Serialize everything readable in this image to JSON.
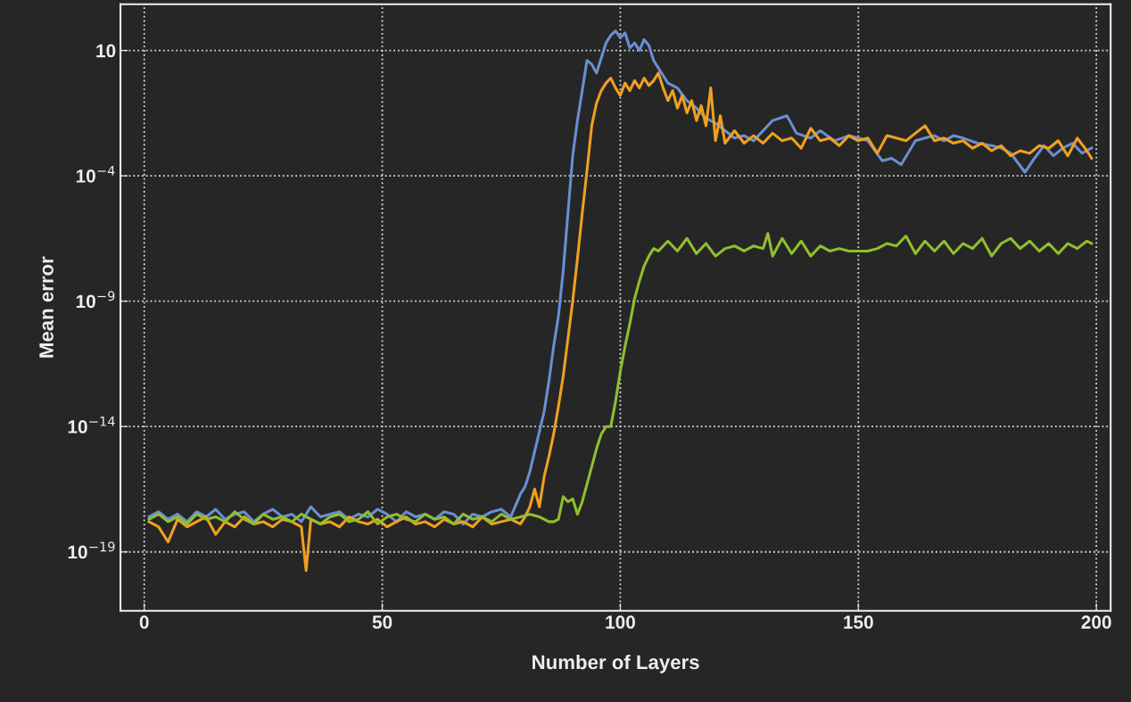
{
  "chart_data": {
    "type": "line",
    "xlabel": "Number of Layers",
    "ylabel": "Mean error",
    "log": "y",
    "grid": true,
    "line_style": "solid",
    "xlim": [
      -5,
      203
    ],
    "xticks": [
      0,
      50,
      100,
      150,
      200
    ],
    "ylim": [
      4.5e-22,
      700
    ],
    "yticks": [
      {
        "value": 1e-19,
        "label": "10$^{−19}$"
      },
      {
        "value": 1e-14,
        "label": "10$^{−14}$"
      },
      {
        "value": 1e-09,
        "label": "10$^{−9}$"
      },
      {
        "value": 0.0001,
        "label": "10$^{−4}$"
      },
      10
    ],
    "series": [
      {
        "color": "#6a8fd0",
        "x": [
          1,
          3,
          5,
          7,
          9,
          11,
          13,
          15,
          17,
          19,
          21,
          23,
          25,
          27,
          29,
          31,
          33,
          35,
          37,
          39,
          41,
          43,
          45,
          47,
          49,
          51,
          53,
          55,
          57,
          59,
          61,
          63,
          65,
          67,
          69,
          71,
          73,
          75,
          77,
          79,
          80,
          81,
          82,
          83,
          84,
          85,
          86,
          87,
          88,
          89,
          90,
          91,
          92,
          93,
          94,
          95,
          96,
          97,
          98,
          99,
          100,
          101,
          102,
          103,
          104,
          105,
          106,
          107,
          108,
          110,
          112,
          114,
          116,
          118,
          120,
          122,
          124,
          126,
          128,
          130,
          132,
          135,
          137,
          140,
          142,
          145,
          148,
          150,
          152,
          155,
          157,
          159,
          162,
          164,
          166,
          168,
          170,
          172,
          175,
          178,
          180,
          182,
          185,
          187,
          189,
          191,
          193,
          195,
          197,
          199
        ],
        "values": [
          2.5e-18,
          4e-18,
          2e-18,
          3.2e-18,
          1.6e-18,
          4e-18,
          2.5e-18,
          5e-18,
          2e-18,
          3.2e-18,
          4e-18,
          1.6e-18,
          3.2e-18,
          5e-18,
          2.5e-18,
          3.2e-18,
          1.6e-18,
          6.3e-18,
          2.5e-18,
          3.2e-18,
          4e-18,
          2e-18,
          3.2e-18,
          2.5e-18,
          5e-18,
          3.2e-18,
          1.6e-18,
          4e-18,
          2.5e-18,
          3.2e-18,
          2e-18,
          4e-18,
          3.2e-18,
          1.3e-18,
          3.2e-18,
          2.5e-18,
          4e-18,
          5e-18,
          2.5e-18,
          2e-17,
          4e-17,
          1.6e-16,
          1e-15,
          6.3e-15,
          4e-14,
          6.3e-13,
          1.6e-11,
          2.5e-10,
          1.6e-08,
          3.2e-06,
          0.00063,
          0.016,
          0.25,
          4,
          2.8,
          1.26,
          5,
          20,
          40,
          60,
          32,
          50,
          12.6,
          20,
          10,
          27,
          16,
          4,
          2,
          0.5,
          0.32,
          0.1,
          0.05,
          0.02,
          0.0126,
          0.0063,
          0.0032,
          0.004,
          0.0025,
          0.0063,
          0.016,
          0.025,
          0.005,
          0.0032,
          0.0063,
          0.0025,
          0.004,
          0.0032,
          0.0025,
          0.0004,
          0.0005,
          0.00028,
          0.0025,
          0.0032,
          0.004,
          0.0025,
          0.004,
          0.0032,
          0.002,
          0.0016,
          0.0013,
          0.0008,
          0.00014,
          0.0005,
          0.0016,
          0.00063,
          0.0013,
          0.002,
          0.0008,
          0.0013
        ]
      },
      {
        "color": "#f0a020",
        "x": [
          1,
          3,
          5,
          7,
          9,
          11,
          13,
          15,
          17,
          19,
          21,
          23,
          25,
          27,
          29,
          31,
          33,
          34,
          35,
          37,
          39,
          41,
          43,
          45,
          47,
          49,
          51,
          53,
          55,
          57,
          59,
          61,
          63,
          65,
          67,
          69,
          71,
          73,
          75,
          77,
          79,
          80,
          81,
          82,
          83,
          84,
          85,
          86,
          87,
          88,
          89,
          90,
          91,
          92,
          93,
          94,
          95,
          96,
          97,
          98,
          99,
          100,
          101,
          102,
          103,
          104,
          105,
          106,
          107,
          108,
          109,
          110,
          111,
          112,
          113,
          114,
          115,
          116,
          117,
          118,
          119,
          120,
          121,
          122,
          124,
          126,
          128,
          130,
          132,
          134,
          136,
          138,
          140,
          142,
          144,
          146,
          148,
          150,
          152,
          154,
          156,
          158,
          160,
          162,
          164,
          166,
          168,
          170,
          172,
          174,
          176,
          178,
          180,
          182,
          184,
          186,
          188,
          190,
          192,
          194,
          196,
          198,
          199
        ],
        "values": [
          1.6e-18,
          1e-18,
          2.5e-19,
          2e-18,
          1e-18,
          1.6e-18,
          2.5e-18,
          5e-19,
          1.6e-18,
          1e-18,
          2.5e-18,
          1.3e-18,
          1.6e-18,
          1e-18,
          2e-18,
          1.6e-18,
          1e-18,
          1.8e-20,
          2e-18,
          1.3e-18,
          1.6e-18,
          1e-18,
          2.5e-18,
          1.6e-18,
          1.3e-18,
          2e-18,
          1e-18,
          1.6e-18,
          2.5e-18,
          1.3e-18,
          1.6e-18,
          1e-18,
          2e-18,
          1.3e-18,
          1.6e-18,
          1e-18,
          2.5e-18,
          1.3e-18,
          1.6e-18,
          2e-18,
          1.3e-18,
          2.5e-18,
          6.3e-18,
          3.2e-17,
          6.3e-18,
          1e-16,
          6.3e-16,
          5e-15,
          6.3e-14,
          1e-12,
          3.2e-11,
          1e-09,
          5e-08,
          3.2e-06,
          0.00016,
          0.01,
          0.079,
          0.25,
          0.5,
          0.79,
          0.32,
          0.16,
          0.5,
          0.25,
          0.63,
          0.32,
          0.79,
          0.4,
          0.63,
          1.26,
          0.32,
          0.1,
          0.25,
          0.05,
          0.16,
          0.032,
          0.1,
          0.016,
          0.063,
          0.01,
          0.32,
          0.0025,
          0.025,
          0.002,
          0.0063,
          0.002,
          0.004,
          0.002,
          0.005,
          0.0025,
          0.0032,
          0.00126,
          0.0079,
          0.0025,
          0.0032,
          0.0016,
          0.004,
          0.0025,
          0.0032,
          0.00079,
          0.004,
          0.0032,
          0.0025,
          0.005,
          0.01,
          0.0025,
          0.0032,
          0.002,
          0.0025,
          0.00126,
          0.002,
          0.001,
          0.0016,
          0.00063,
          0.001,
          0.00079,
          0.0016,
          0.00126,
          0.0025,
          0.00063,
          0.0032,
          0.001,
          0.0005
        ]
      },
      {
        "color": "#8fbf2f",
        "x": [
          1,
          3,
          5,
          7,
          9,
          11,
          13,
          15,
          17,
          19,
          21,
          23,
          25,
          27,
          29,
          31,
          33,
          35,
          37,
          39,
          41,
          43,
          45,
          47,
          49,
          51,
          53,
          55,
          57,
          59,
          61,
          63,
          65,
          67,
          69,
          71,
          73,
          75,
          77,
          79,
          81,
          83,
          84,
          85,
          86,
          87,
          88,
          89,
          90,
          91,
          92,
          93,
          94,
          95,
          96,
          97,
          98,
          99,
          100,
          101,
          102,
          103,
          104,
          105,
          106,
          107,
          108,
          110,
          112,
          114,
          116,
          118,
          120,
          122,
          124,
          126,
          128,
          130,
          131,
          132,
          134,
          136,
          138,
          140,
          142,
          144,
          146,
          148,
          150,
          152,
          154,
          156,
          158,
          160,
          162,
          164,
          166,
          168,
          170,
          172,
          174,
          176,
          178,
          180,
          182,
          184,
          186,
          188,
          190,
          192,
          194,
          196,
          198,
          199
        ],
        "values": [
          2e-18,
          3.2e-18,
          1.6e-18,
          2.5e-18,
          1.3e-18,
          3.2e-18,
          2e-18,
          2.5e-18,
          1.6e-18,
          4e-18,
          2e-18,
          1.3e-18,
          3.2e-18,
          2e-18,
          2.5e-18,
          1.6e-18,
          3.2e-18,
          2e-18,
          1.3e-18,
          2.5e-18,
          3.2e-18,
          1.6e-18,
          2e-18,
          4e-18,
          1.3e-18,
          2.5e-18,
          3.2e-18,
          2e-18,
          1.6e-18,
          3.2e-18,
          2e-18,
          2.5e-18,
          1.3e-18,
          3.2e-18,
          2e-18,
          2.5e-18,
          1.6e-18,
          3.2e-18,
          2e-18,
          2.5e-18,
          3.2e-18,
          2.5e-18,
          2e-18,
          1.6e-18,
          1.6e-18,
          2e-18,
          1.6e-17,
          1e-17,
          1.3e-17,
          3.2e-18,
          1e-17,
          5e-17,
          2.5e-16,
          1.3e-15,
          5e-15,
          1e-14,
          1e-14,
          1e-13,
          1.6e-12,
          1.6e-11,
          1.26e-10,
          1.26e-09,
          6.3e-09,
          2.5e-08,
          6.3e-08,
          1.26e-07,
          1e-07,
          2.5e-07,
          1e-07,
          3.2e-07,
          7.9e-08,
          2e-07,
          6.3e-08,
          1.26e-07,
          1.6e-07,
          1e-07,
          1.6e-07,
          1.26e-07,
          5e-07,
          6.3e-08,
          3.2e-07,
          7.9e-08,
          2.5e-07,
          6.3e-08,
          1.6e-07,
          1e-07,
          1.26e-07,
          1e-07,
          1e-07,
          1e-07,
          1.26e-07,
          2e-07,
          1.6e-07,
          4e-07,
          7.9e-08,
          2.5e-07,
          1e-07,
          2.5e-07,
          7.9e-08,
          2e-07,
          1.26e-07,
          3.2e-07,
          6.3e-08,
          2e-07,
          3.2e-07,
          1.26e-07,
          2.5e-07,
          1e-07,
          2e-07,
          7.9e-08,
          2e-07,
          1.26e-07,
          2.5e-07,
          2e-07
        ]
      }
    ]
  }
}
